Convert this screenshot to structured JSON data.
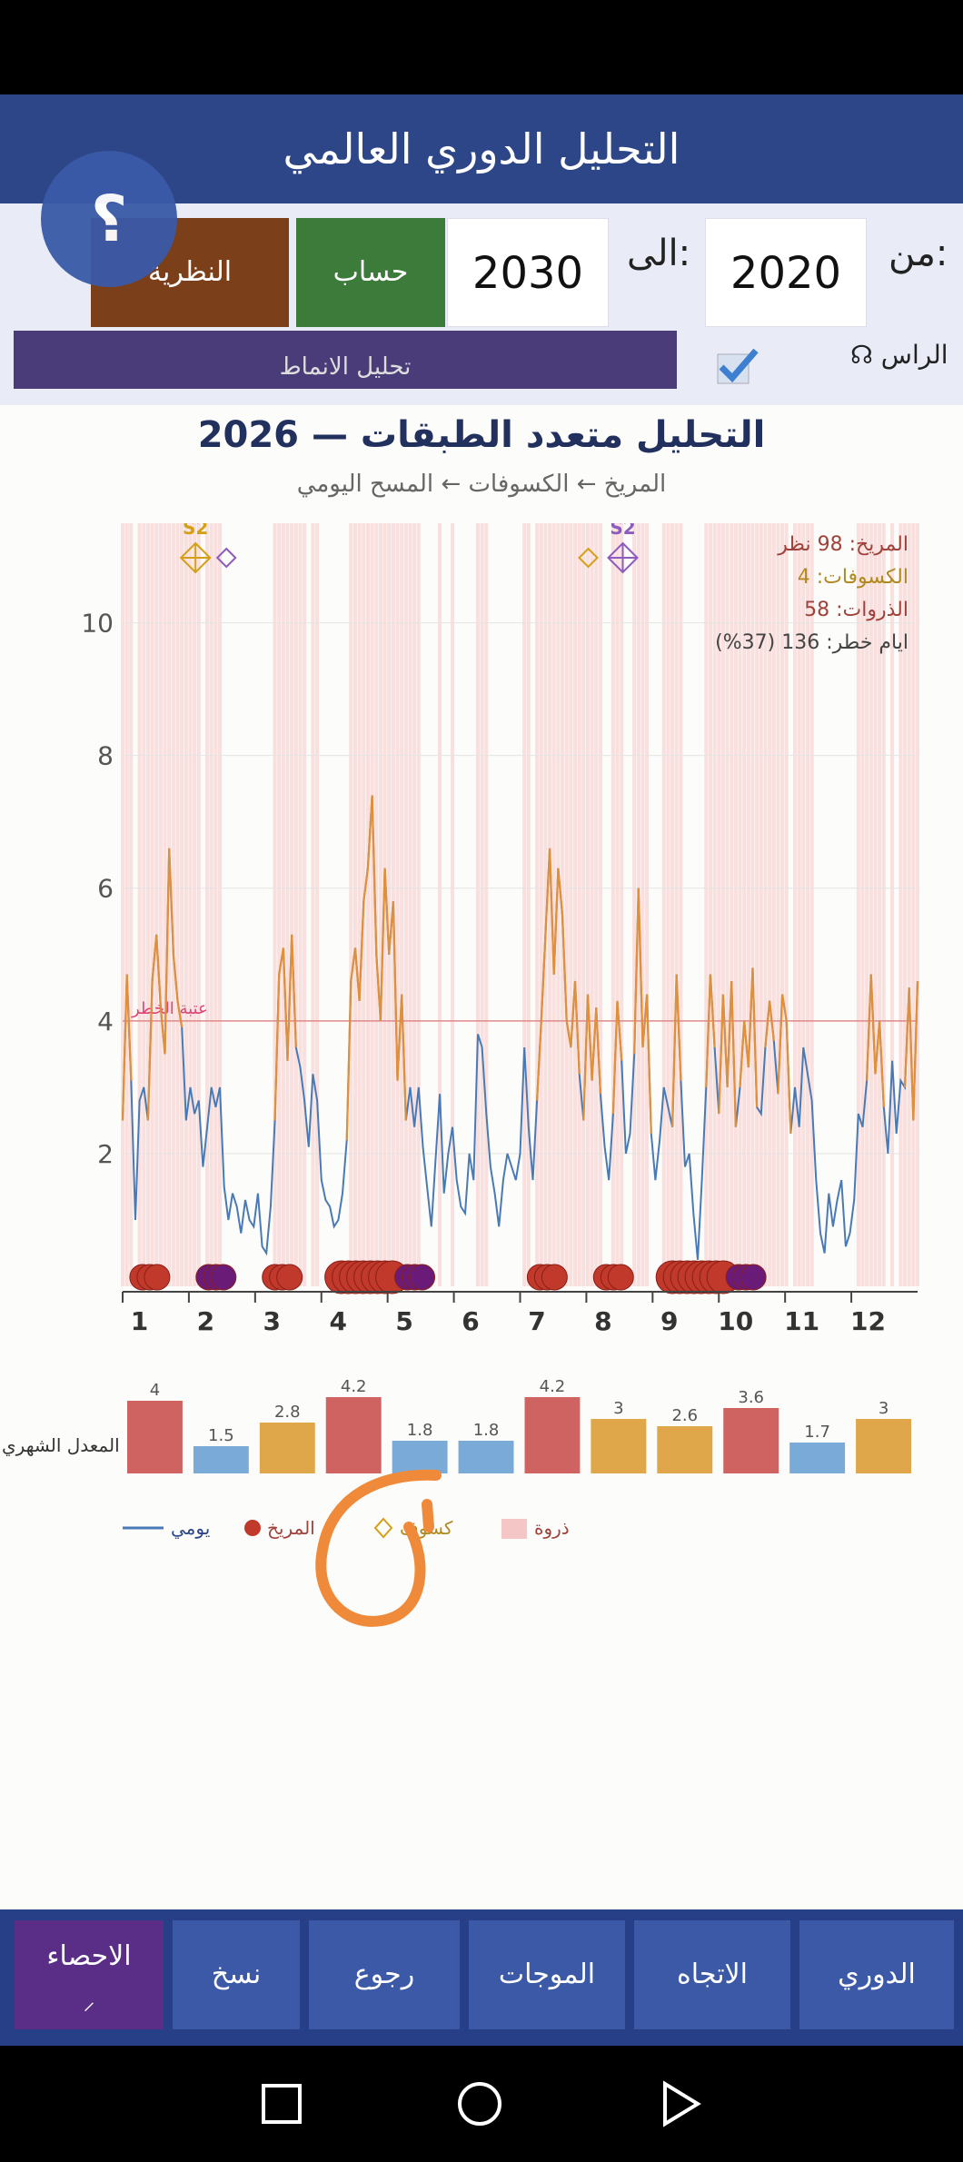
{
  "app": {
    "title": "التحليل الدوري العالمي",
    "help_glyph": "؟"
  },
  "controls": {
    "from_label": "من:",
    "from_value": "2020",
    "to_label": "الى:",
    "to_value": "2030",
    "calc_label": "حساب",
    "theory_label": "النظرية",
    "overlay_text": "تحليل الانماط",
    "head_label": "☊ الراس",
    "head_checked": true
  },
  "colors": {
    "title_bg": "#2d4687",
    "calc_bg": "#3d7b3a",
    "theory_bg": "#7b3f1a",
    "mars": "#c0392b",
    "eclipse": "#d4a017",
    "daily": "#4a7ab5",
    "risk_band": "#f5c6c6"
  },
  "chart": {
    "title": "التحليل متعدد الطبقات — 2026",
    "subtitle": "المريخ ← الكسوفات ← المسح اليومي",
    "threshold_label": "عتبة الخطر",
    "stats": {
      "mars": "المريخ: 98 نظر",
      "eclipses": "الكسوفات: 4",
      "peaks": "الذروات: 58",
      "risk_days": "ايام خطر: 136 (37%)"
    },
    "monthly_label": "المعدل الشهري",
    "legend": {
      "daily": "يومي",
      "mars": "المريخ",
      "eclipse": "كسوف",
      "peak": "ذروة"
    },
    "eclipse_markers": [
      "S2",
      "S2"
    ]
  },
  "chart_data": {
    "type": "line",
    "title": "التحليل متعدد الطبقات — 2026",
    "ylim": [
      0,
      11.5
    ],
    "yticks": [
      2,
      4,
      6,
      8,
      10
    ],
    "threshold": 4,
    "months": [
      "1",
      "2",
      "3",
      "4",
      "5",
      "6",
      "7",
      "8",
      "9",
      "10",
      "11",
      "12"
    ],
    "monthly_avg": [
      4,
      1.5,
      2.8,
      4.2,
      1.8,
      1.8,
      4.2,
      3,
      2.6,
      3.6,
      1.7,
      3
    ],
    "monthly_avg_labels": [
      "4",
      "1.5",
      "2.8",
      "4.2",
      "1.8",
      "1.8",
      "4.2",
      "3",
      "2.6",
      "3.6",
      "1.7",
      "3"
    ],
    "series": [
      {
        "name": "يومي",
        "values": [
          2.5,
          4.7,
          3.1,
          1.0,
          2.8,
          3.0,
          2.5,
          4.6,
          5.3,
          4.2,
          3.5,
          6.6,
          5.0,
          4.3,
          3.9,
          2.5,
          3.0,
          2.6,
          2.8,
          1.8,
          2.4,
          3.0,
          2.7,
          3.0,
          1.5,
          1.0,
          1.4,
          1.2,
          0.8,
          1.3,
          1.0,
          0.9,
          1.4,
          0.6,
          0.5,
          1.2,
          2.5,
          4.7,
          5.1,
          3.4,
          5.3,
          3.6,
          3.3,
          2.8,
          2.1,
          3.2,
          2.8,
          1.6,
          1.3,
          1.2,
          0.9,
          1.0,
          1.4,
          2.2,
          4.6,
          5.1,
          4.3,
          5.8,
          6.3,
          7.4,
          5.0,
          4.0,
          6.3,
          5.0,
          5.8,
          3.1,
          4.4,
          2.5,
          3.0,
          2.4,
          3.0,
          2.1,
          1.5,
          0.9,
          1.9,
          2.9,
          1.4,
          2.0,
          2.4,
          1.6,
          1.2,
          1.1,
          2.0,
          1.6,
          3.8,
          3.6,
          2.6,
          1.8,
          1.4,
          0.9,
          1.6,
          2.0,
          1.8,
          1.6,
          2.0,
          3.6,
          2.4,
          1.6,
          2.8,
          4.0,
          5.3,
          6.6,
          4.7,
          6.3,
          5.6,
          4.0,
          3.6,
          4.6,
          3.2,
          2.5,
          4.4,
          3.1,
          4.2,
          2.9,
          2.1,
          1.6,
          2.6,
          4.3,
          3.4,
          2.0,
          2.3,
          3.5,
          6.0,
          3.6,
          4.4,
          2.3,
          1.6,
          2.2,
          3.0,
          2.7,
          2.4,
          4.7,
          3.1,
          1.8,
          2.0,
          1.1,
          0.4,
          1.6,
          3.0,
          4.7,
          3.6,
          2.6,
          4.4,
          3.0,
          4.6,
          2.4,
          3.0,
          4.0,
          3.3,
          4.8,
          2.7,
          2.6,
          3.6,
          4.3,
          3.7,
          2.9,
          4.4,
          4.0,
          2.3,
          3.0,
          2.4,
          3.6,
          3.2,
          2.8,
          1.6,
          0.8,
          0.5,
          1.4,
          0.9,
          1.3,
          1.6,
          0.6,
          0.8,
          1.3,
          2.6,
          2.4,
          3.1,
          4.7,
          3.2,
          4.0,
          2.7,
          2.0,
          3.4,
          2.3,
          3.1,
          3.0,
          4.5,
          2.5,
          4.6
        ]
      }
    ],
    "mars_clusters_months": [
      1,
      2,
      3,
      4,
      5,
      7,
      8,
      9,
      10
    ],
    "eclipse_months": [
      2,
      8
    ]
  }
}
